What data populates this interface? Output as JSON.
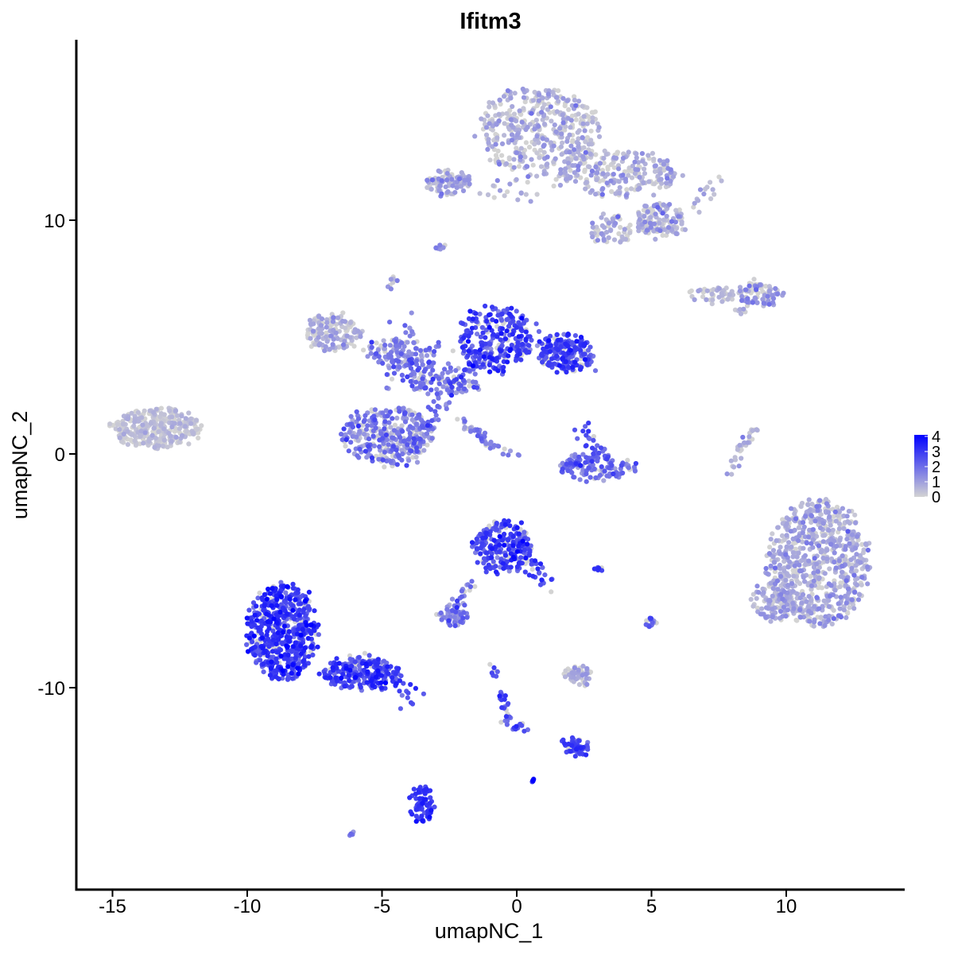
{
  "chart_data": {
    "type": "scatter",
    "title": "Ifitm3",
    "xlabel": "umapNC_1",
    "ylabel": "umapNC_2",
    "xlim": [
      -16.4,
      14.5
    ],
    "ylim": [
      -17.8,
      17.8
    ],
    "x_ticks": [
      -15,
      -10,
      -5,
      0,
      5,
      10
    ],
    "y_ticks": [
      -10,
      0,
      10
    ],
    "grid": false,
    "color_scale": {
      "low": "#d3d3d3",
      "high": "#0000ff",
      "min": 0,
      "max": 4.1,
      "legend_ticks": [
        0,
        1,
        2,
        3,
        4
      ],
      "legend_position": "right"
    },
    "clusters": [
      {
        "cx": 0.8,
        "cy": 13.8,
        "rx": 2.3,
        "ry": 1.9,
        "n": 420,
        "expr": 0.55,
        "spread": 0.5
      },
      {
        "cx": 3.8,
        "cy": 12.0,
        "rx": 2.2,
        "ry": 1.0,
        "n": 220,
        "expr": 0.6,
        "spread": 0.5
      },
      {
        "cx": 5.3,
        "cy": 10.0,
        "rx": 0.9,
        "ry": 0.7,
        "n": 140,
        "expr": 0.55,
        "spread": 0.5
      },
      {
        "cx": 3.5,
        "cy": 9.6,
        "rx": 0.8,
        "ry": 0.6,
        "n": 60,
        "expr": 0.6,
        "spread": 0.5
      },
      {
        "cx": -2.5,
        "cy": 11.6,
        "rx": 0.8,
        "ry": 0.5,
        "n": 90,
        "expr": 0.8,
        "spread": 0.6
      },
      {
        "cx": 9.0,
        "cy": 6.8,
        "rx": 0.8,
        "ry": 0.45,
        "n": 80,
        "expr": 1.0,
        "spread": 0.6
      },
      {
        "cx": 7.3,
        "cy": 6.8,
        "rx": 1.0,
        "ry": 0.25,
        "n": 45,
        "expr": 0.4,
        "spread": 0.4
      },
      {
        "cx": -13.4,
        "cy": 1.1,
        "rx": 1.6,
        "ry": 0.85,
        "n": 320,
        "expr": 0.25,
        "spread": 0.3
      },
      {
        "cx": -6.8,
        "cy": 5.2,
        "rx": 1.0,
        "ry": 0.8,
        "n": 150,
        "expr": 0.5,
        "spread": 0.5
      },
      {
        "cx": -4.5,
        "cy": 4.3,
        "rx": 1.2,
        "ry": 0.6,
        "n": 90,
        "expr": 1.3,
        "spread": 0.8
      },
      {
        "cx": -0.8,
        "cy": 4.9,
        "rx": 1.3,
        "ry": 1.4,
        "n": 260,
        "expr": 2.7,
        "spread": 0.6
      },
      {
        "cx": 1.8,
        "cy": 4.3,
        "rx": 1.0,
        "ry": 0.8,
        "n": 180,
        "expr": 2.7,
        "spread": 0.5
      },
      {
        "cx": -2.8,
        "cy": 3.2,
        "rx": 1.5,
        "ry": 0.7,
        "n": 110,
        "expr": 2.0,
        "spread": 0.7
      },
      {
        "cx": -4.8,
        "cy": 0.8,
        "rx": 1.7,
        "ry": 1.2,
        "n": 320,
        "expr": 1.5,
        "spread": 0.7
      },
      {
        "cx": 3.0,
        "cy": -0.5,
        "rx": 1.5,
        "ry": 0.6,
        "n": 130,
        "expr": 1.8,
        "spread": 0.6
      },
      {
        "cx": 11.2,
        "cy": -4.7,
        "rx": 1.9,
        "ry": 2.7,
        "n": 720,
        "expr": 0.7,
        "spread": 0.5
      },
      {
        "cx": 9.5,
        "cy": -6.3,
        "rx": 0.8,
        "ry": 0.9,
        "n": 90,
        "expr": 0.7,
        "spread": 0.5
      },
      {
        "cx": -0.5,
        "cy": -4.0,
        "rx": 1.0,
        "ry": 1.1,
        "n": 230,
        "expr": 2.6,
        "spread": 0.6
      },
      {
        "cx": -8.7,
        "cy": -7.6,
        "rx": 1.3,
        "ry": 2.1,
        "n": 560,
        "expr": 2.9,
        "spread": 0.6
      },
      {
        "cx": -5.8,
        "cy": -9.4,
        "rx": 1.5,
        "ry": 0.65,
        "n": 200,
        "expr": 2.7,
        "spread": 0.6
      },
      {
        "cx": -2.4,
        "cy": -6.9,
        "rx": 0.5,
        "ry": 0.4,
        "n": 60,
        "expr": 1.4,
        "spread": 0.6
      },
      {
        "cx": 2.3,
        "cy": -9.5,
        "rx": 0.5,
        "ry": 0.35,
        "n": 60,
        "expr": 0.5,
        "spread": 0.5
      },
      {
        "cx": 2.3,
        "cy": -12.5,
        "rx": 0.4,
        "ry": 0.3,
        "n": 40,
        "expr": 2.7,
        "spread": 0.5
      },
      {
        "cx": -3.5,
        "cy": -15.0,
        "rx": 0.35,
        "ry": 0.8,
        "n": 70,
        "expr": 3.0,
        "spread": 0.4
      },
      {
        "cx": 5.0,
        "cy": -7.3,
        "rx": 0.2,
        "ry": 0.3,
        "n": 15,
        "expr": 2.0,
        "spread": 0.5
      }
    ],
    "trails": [
      {
        "x1": -4.5,
        "y1": -0.2,
        "x2": -1.8,
        "y2": 3.4,
        "n": 70,
        "expr": 1.7,
        "jitter": 0.25
      },
      {
        "x1": -2.1,
        "y1": 1.5,
        "x2": -1.2,
        "y2": 0.6,
        "n": 25,
        "expr": 1.6,
        "jitter": 0.08
      },
      {
        "x1": -1.4,
        "y1": 0.6,
        "x2": 0.1,
        "y2": -0.2,
        "n": 20,
        "expr": 1.7,
        "jitter": 0.08
      },
      {
        "x1": -4.6,
        "y1": 2.8,
        "x2": -3.9,
        "y2": 6.0,
        "n": 25,
        "expr": 1.7,
        "jitter": 0.25
      },
      {
        "x1": -5.3,
        "y1": 4.0,
        "x2": -1.0,
        "y2": 4.4,
        "n": 40,
        "expr": 1.8,
        "jitter": 0.3
      },
      {
        "x1": 0.5,
        "y1": 5.0,
        "x2": 2.8,
        "y2": 3.8,
        "n": 30,
        "expr": 2.4,
        "jitter": 0.3
      },
      {
        "x1": 2.5,
        "y1": 1.2,
        "x2": 3.3,
        "y2": -0.5,
        "n": 25,
        "expr": 2.5,
        "jitter": 0.2
      },
      {
        "x1": -5.8,
        "y1": -9.1,
        "x2": -3.8,
        "y2": -10.4,
        "n": 55,
        "expr": 2.8,
        "jitter": 0.25
      },
      {
        "x1": -1.6,
        "y1": -5.2,
        "x2": -2.4,
        "y2": -6.9,
        "n": 25,
        "expr": 1.5,
        "jitter": 0.12
      },
      {
        "x1": 0.3,
        "y1": -4.3,
        "x2": 1.1,
        "y2": -5.7,
        "n": 30,
        "expr": 2.6,
        "jitter": 0.15
      },
      {
        "x1": -0.9,
        "y1": -9.1,
        "x2": -0.3,
        "y2": -11.5,
        "n": 30,
        "expr": 2.5,
        "jitter": 0.12
      },
      {
        "x1": -0.3,
        "y1": -11.5,
        "x2": 0.6,
        "y2": -11.9,
        "n": 12,
        "expr": 2.2,
        "jitter": 0.08
      },
      {
        "x1": 1.4,
        "y1": -12.2,
        "x2": 2.5,
        "y2": -12.7,
        "n": 12,
        "expr": 2.5,
        "jitter": 0.08
      },
      {
        "x1": 8.8,
        "y1": 1.2,
        "x2": 7.9,
        "y2": -0.8,
        "n": 30,
        "expr": 0.6,
        "jitter": 0.12
      },
      {
        "x1": 6.8,
        "y1": 10.7,
        "x2": 7.3,
        "y2": 11.7,
        "n": 15,
        "expr": 0.8,
        "jitter": 0.2
      },
      {
        "x1": -1.5,
        "y1": 11.0,
        "x2": 2.0,
        "y2": 11.8,
        "n": 25,
        "expr": 0.4,
        "jitter": 0.25
      },
      {
        "x1": -3.0,
        "y1": 8.7,
        "x2": -2.7,
        "y2": 8.9,
        "n": 8,
        "expr": 1.2,
        "jitter": 0.06
      },
      {
        "x1": -4.7,
        "y1": 7.2,
        "x2": -4.5,
        "y2": 7.6,
        "n": 8,
        "expr": 0.8,
        "jitter": 0.08
      },
      {
        "x1": 8.2,
        "y1": 6.0,
        "x2": 8.7,
        "y2": 6.5,
        "n": 8,
        "expr": 0.5,
        "jitter": 0.08
      },
      {
        "x1": 2.7,
        "y1": -5.0,
        "x2": 3.1,
        "y2": -4.9,
        "n": 8,
        "expr": 2.8,
        "jitter": 0.05
      },
      {
        "x1": 0.55,
        "y1": -13.9,
        "x2": 0.6,
        "y2": -14.0,
        "n": 6,
        "expr": 3.0,
        "jitter": 0.04
      },
      {
        "x1": -6.2,
        "y1": -16.3,
        "x2": -6.0,
        "y2": -16.2,
        "n": 4,
        "expr": 1.2,
        "jitter": 0.04
      }
    ]
  }
}
